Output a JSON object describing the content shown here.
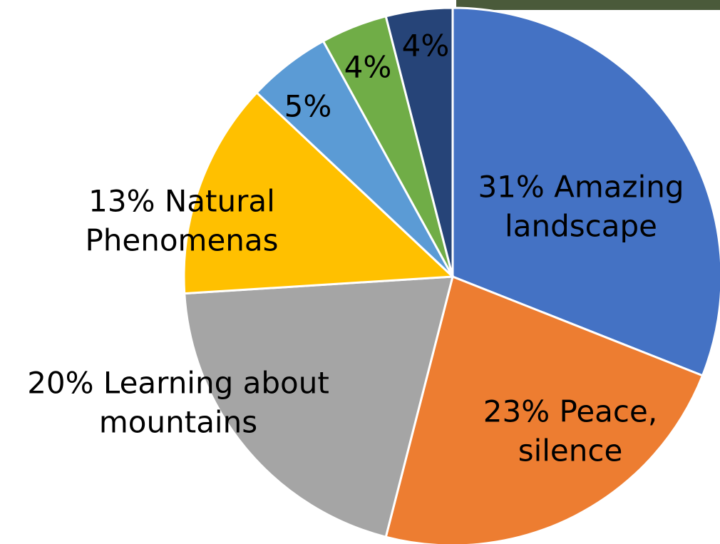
{
  "chart_data": {
    "type": "pie",
    "categories": [
      "Amazing landscape",
      "Peace, silence",
      "Learning about mountains",
      "Natural Phenomenas",
      null,
      null,
      null
    ],
    "values": [
      31,
      23,
      20,
      13,
      5,
      4,
      4
    ],
    "value_labels": [
      "31%",
      "23%",
      "20%",
      "13%",
      "5%",
      "4%",
      "4%"
    ],
    "colors": [
      "#4472c4",
      "#ed7d31",
      "#a5a5a5",
      "#ffc000",
      "#5b9bd5",
      "#70ad47",
      "#264478"
    ]
  }
}
